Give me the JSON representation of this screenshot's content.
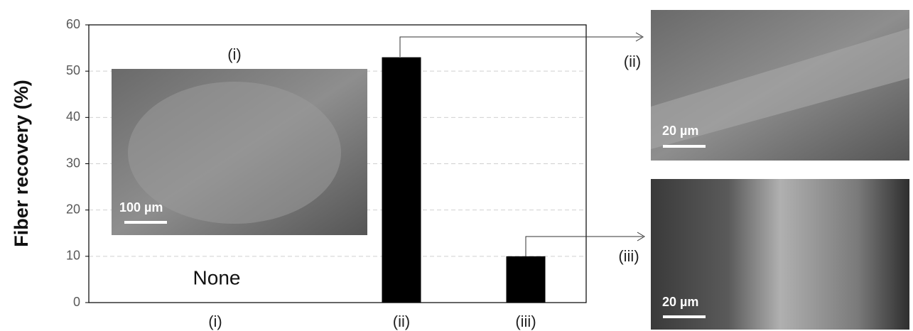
{
  "chart_data": {
    "type": "bar",
    "y_label": "Fiber recovery (%)",
    "categories": [
      "(i)",
      "(ii)",
      "(iii)"
    ],
    "values": [
      null,
      53,
      10
    ],
    "color": "#000000",
    "ylim": [
      0,
      60
    ],
    "yticks": [
      0,
      10,
      20,
      30,
      40,
      50,
      60
    ],
    "grid": true,
    "annotation": "None",
    "insets": [
      {
        "label": "(i)",
        "scale_bar": "100 µm"
      },
      {
        "label": "(ii)",
        "scale_bar": "20 µm"
      },
      {
        "label": "(iii)",
        "scale_bar": "20 µm"
      }
    ]
  }
}
